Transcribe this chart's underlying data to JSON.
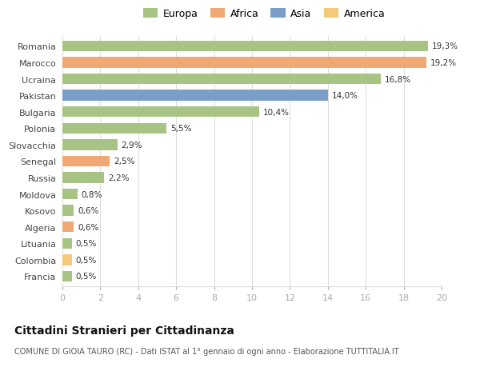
{
  "categories": [
    "Francia",
    "Colombia",
    "Lituania",
    "Algeria",
    "Kosovo",
    "Moldova",
    "Russia",
    "Senegal",
    "Slovacchia",
    "Polonia",
    "Bulgaria",
    "Pakistan",
    "Ucraina",
    "Marocco",
    "Romania"
  ],
  "values": [
    0.5,
    0.5,
    0.5,
    0.6,
    0.6,
    0.8,
    2.2,
    2.5,
    2.9,
    5.5,
    10.4,
    14.0,
    16.8,
    19.2,
    19.3
  ],
  "labels": [
    "0,5%",
    "0,5%",
    "0,5%",
    "0,6%",
    "0,6%",
    "0,8%",
    "2,2%",
    "2,5%",
    "2,9%",
    "5,5%",
    "10,4%",
    "14,0%",
    "16,8%",
    "19,2%",
    "19,3%"
  ],
  "colors": [
    "#a8c484",
    "#f5c97a",
    "#a8c484",
    "#f0a875",
    "#a8c484",
    "#a8c484",
    "#a8c484",
    "#f0a875",
    "#a8c484",
    "#a8c484",
    "#a8c484",
    "#7b9ec7",
    "#a8c484",
    "#f0a875",
    "#a8c484"
  ],
  "legend_labels": [
    "Europa",
    "Africa",
    "Asia",
    "America"
  ],
  "legend_colors": [
    "#a8c484",
    "#f0a875",
    "#7b9ec7",
    "#f5c97a"
  ],
  "title": "Cittadini Stranieri per Cittadinanza",
  "subtitle": "COMUNE DI GIOIA TAURO (RC) - Dati ISTAT al 1° gennaio di ogni anno - Elaborazione TUTTITALIA.IT",
  "xlim": [
    0,
    20
  ],
  "xticks": [
    0,
    2,
    4,
    6,
    8,
    10,
    12,
    14,
    16,
    18,
    20
  ],
  "background_color": "#ffffff",
  "grid_color": "#dddddd",
  "bar_height": 0.65
}
